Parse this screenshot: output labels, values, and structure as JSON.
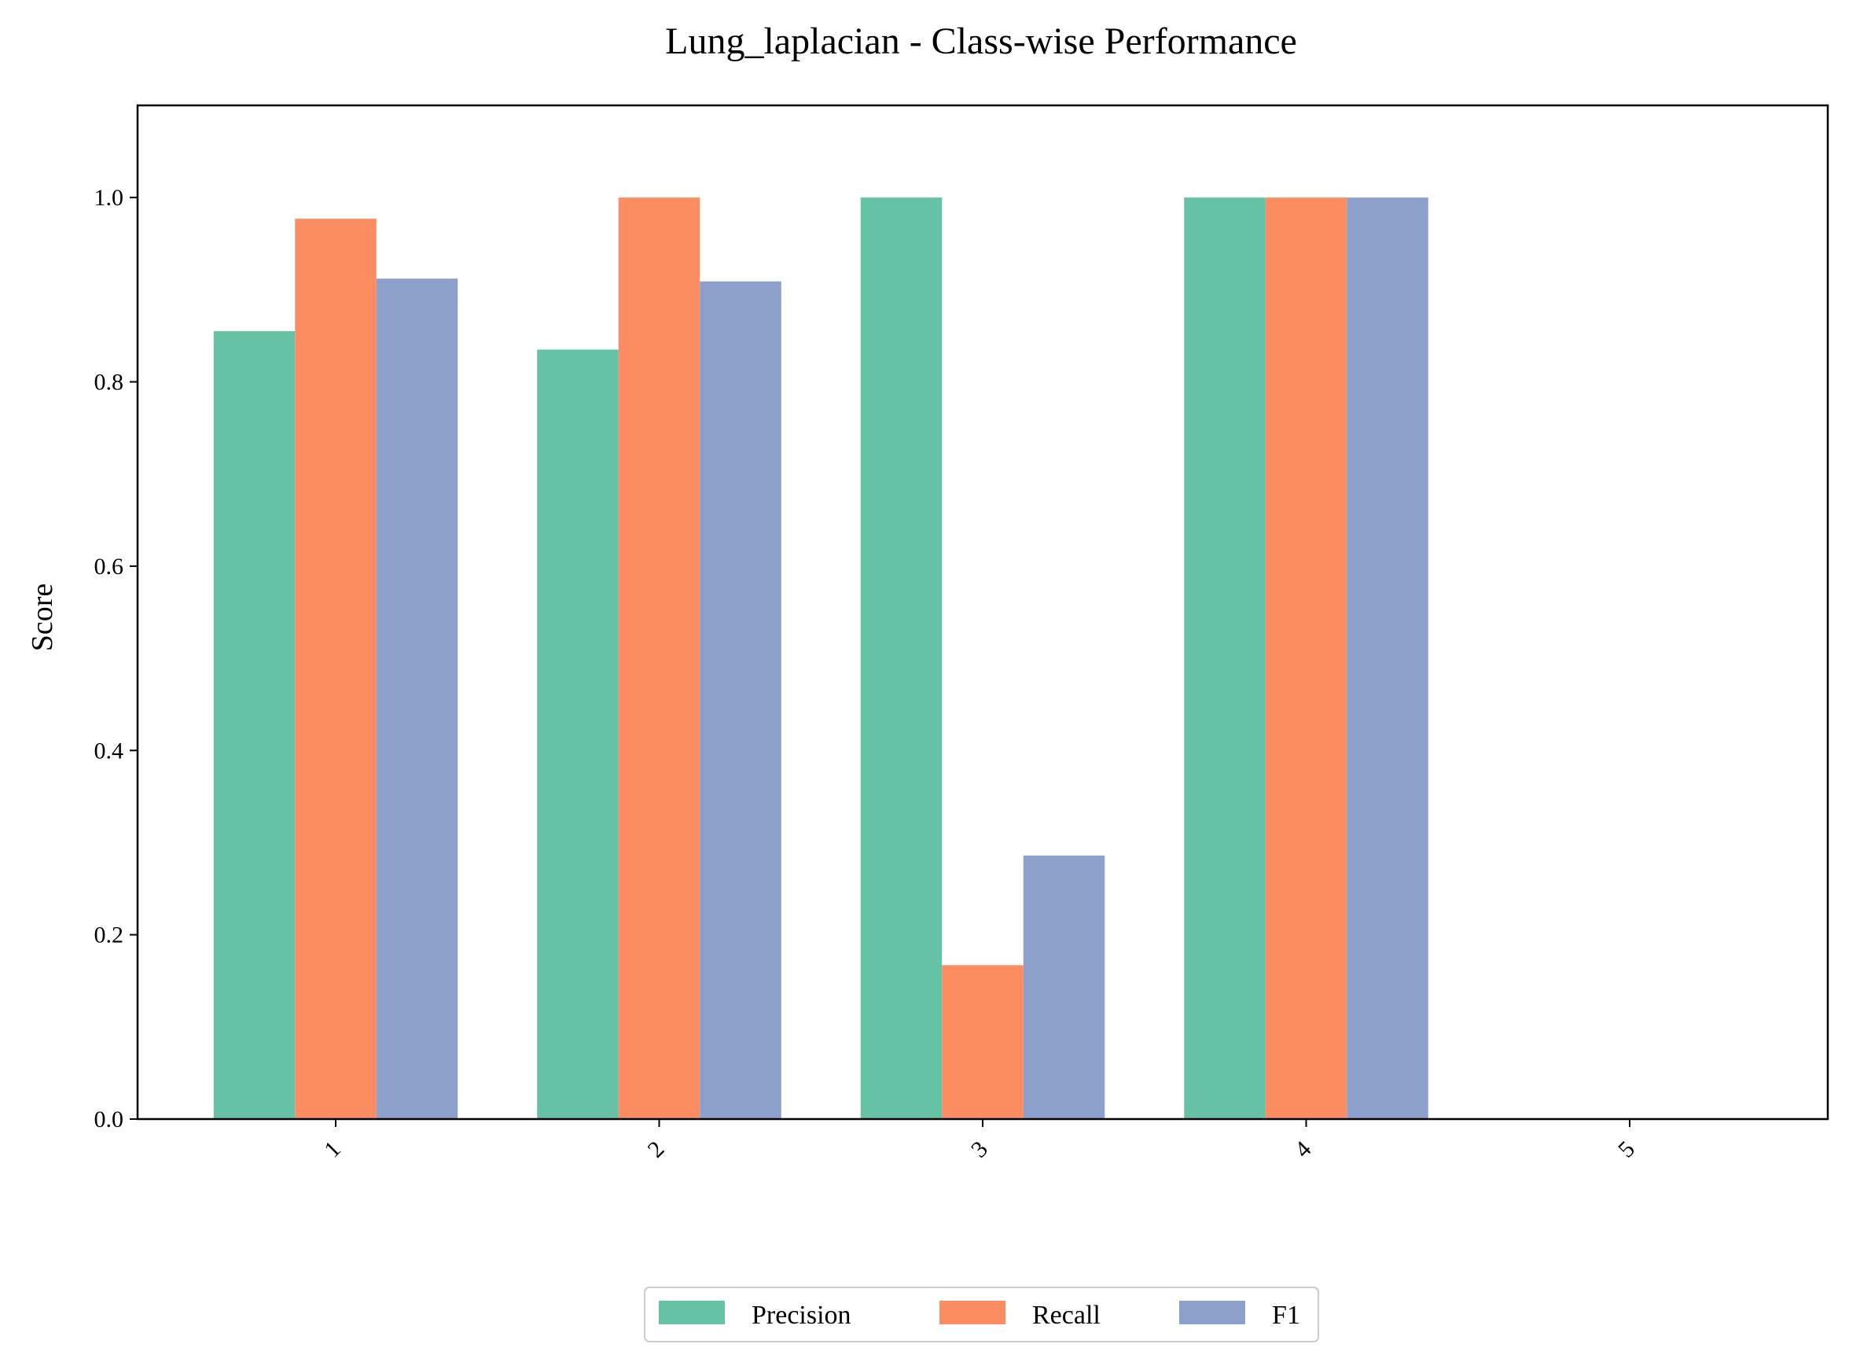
{
  "chart_data": {
    "type": "bar",
    "title": "Lung_laplacian - Class-wise Performance",
    "xlabel": "",
    "ylabel": "Score",
    "ylim": [
      0,
      1.1
    ],
    "yticks": [
      "0.0",
      "0.2",
      "0.4",
      "0.6",
      "0.8",
      "1.0"
    ],
    "categories": [
      "1",
      "2",
      "3",
      "4",
      "5"
    ],
    "series": [
      {
        "name": "Precision",
        "color": "#66c2a5",
        "values": [
          0.855,
          0.835,
          1.0,
          1.0,
          0.0
        ]
      },
      {
        "name": "Recall",
        "color": "#fc8d62",
        "values": [
          0.977,
          1.0,
          0.167,
          1.0,
          0.0
        ]
      },
      {
        "name": "F1",
        "color": "#8da0cb",
        "values": [
          0.912,
          0.909,
          0.286,
          1.0,
          0.0
        ]
      }
    ],
    "grid": false,
    "legend_position": "bottom-center"
  }
}
